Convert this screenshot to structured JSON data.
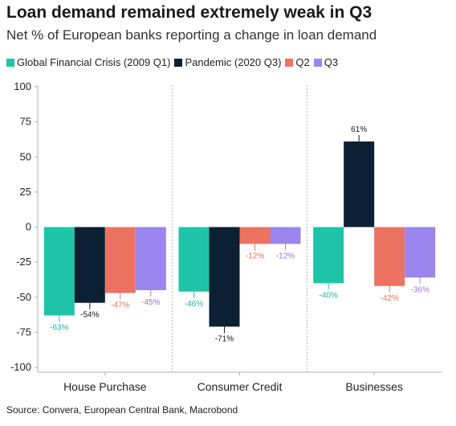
{
  "chart_data": {
    "type": "bar",
    "title": "Loan demand remained extremely weak in Q3",
    "subtitle": "Net % of European banks reporting a change in loan demand",
    "categories": [
      "House Purchase",
      "Consumer Credit",
      "Businesses"
    ],
    "series": [
      {
        "name": "Global Financial Crisis (2009 Q1)",
        "color": "#1fc4a8",
        "values": [
          -63,
          -46,
          -40
        ],
        "labels": [
          "-63%",
          "-46%",
          "-40%"
        ]
      },
      {
        "name": "Pandemic (2020 Q3)",
        "color": "#0d1f33",
        "values": [
          -54,
          -71,
          61
        ],
        "labels": [
          "-54%",
          "-71%",
          "61%"
        ]
      },
      {
        "name": "Q2",
        "color": "#ec7262",
        "values": [
          -47,
          -12,
          -42
        ],
        "labels": [
          "-47%",
          "-12%",
          "-42%"
        ]
      },
      {
        "name": "Q3",
        "color": "#9b85ee",
        "values": [
          -45,
          -12,
          -36
        ],
        "labels": [
          "-45%",
          "-12%",
          "-36%"
        ]
      }
    ],
    "label_colors": [
      "#1fb39c",
      "#111111",
      "#e8705c",
      "#8f78e8"
    ],
    "ylim": [
      -100,
      100
    ],
    "yticks": [
      100,
      75,
      50,
      25,
      0,
      -25,
      -50,
      -75,
      -100
    ],
    "ytick_labels": [
      "100",
      "75",
      "50",
      "25",
      "0",
      "-25",
      "-50",
      "-75",
      "-100"
    ],
    "xlabel": "",
    "ylabel": "",
    "legend_position": "top",
    "grid": false,
    "category_separators": "dotted"
  },
  "source": "Source: Convera, European Central Bank, Macrobond"
}
